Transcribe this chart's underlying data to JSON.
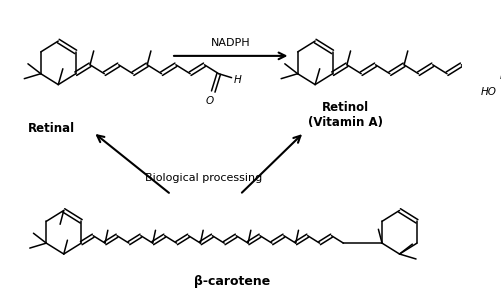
{
  "bg_color": "#ffffff",
  "line_color": "#000000",
  "line_width": 1.1,
  "label_retinal": "Retinal",
  "label_retinol": "Retinol\n(Vitamin A)",
  "label_beta": "β-carotene",
  "label_nadph": "NADPH",
  "label_bio": "Biological processing",
  "fig_width": 5.02,
  "fig_height": 3.0,
  "dpi": 100
}
